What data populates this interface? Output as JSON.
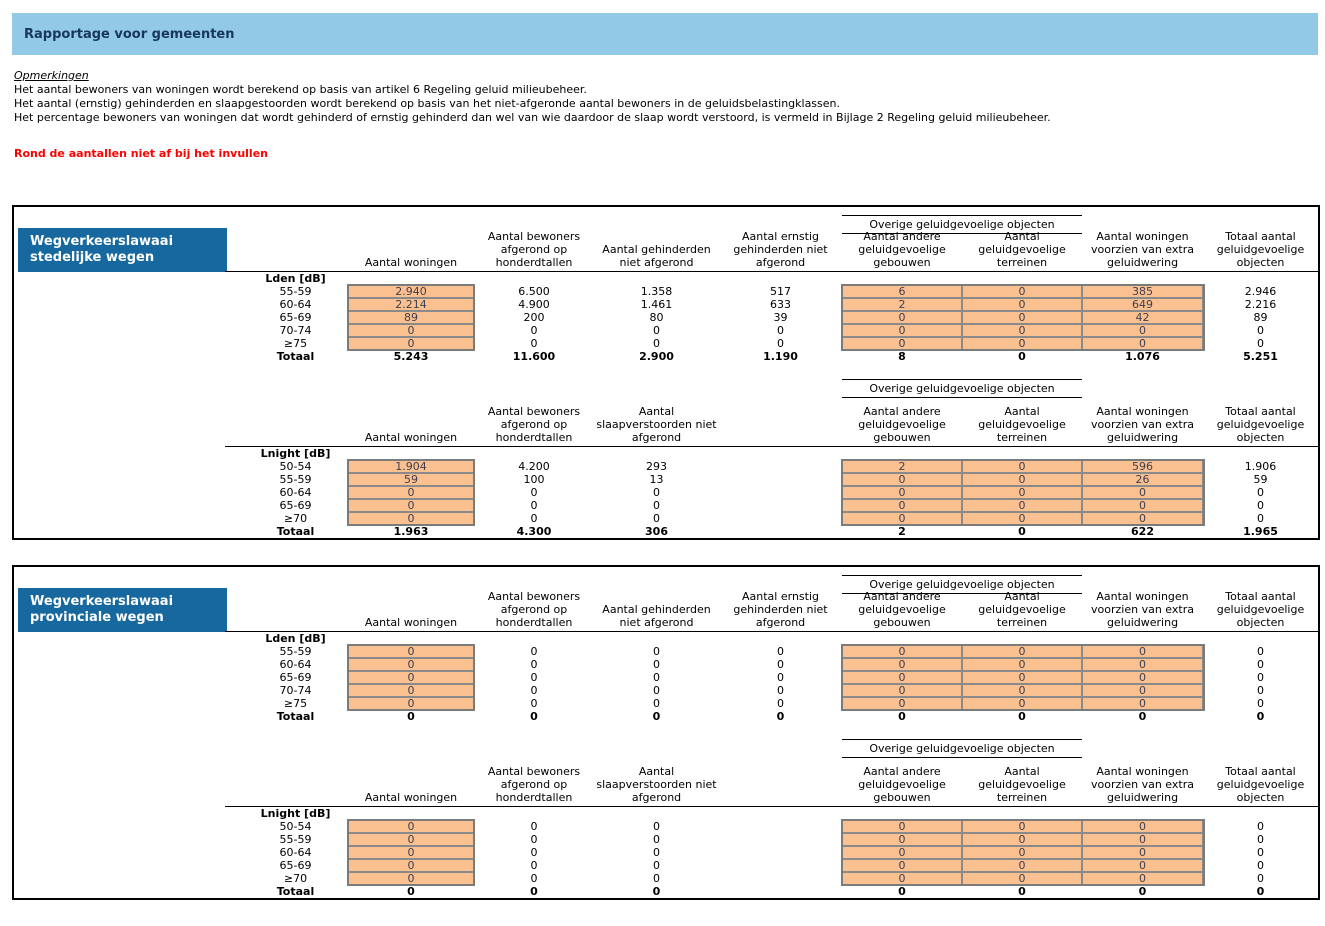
{
  "page": {
    "title": "Rapportage voor gemeenten",
    "notes_heading": "Opmerkingen",
    "notes": [
      "Het aantal bewoners van woningen wordt berekend op basis van artikel 6 Regeling geluid milieubeheer.",
      "Het aantal (ernstig) gehinderden en slaapgestoorden wordt berekend op basis van het niet-afgeronde aantal bewoners in de geluidsbelastingklassen.",
      "Het percentage bewoners van woningen dat wordt gehinderd of ernstig gehinderd dan wel van wie daardoor de slaap wordt verstoord, is vermeld in Bijlage 2 Regeling geluid milieubeheer."
    ],
    "warning": "Rond de aantallen niet af bij het invullen"
  },
  "colors": {
    "banner_bg": "#92C9E7",
    "table_title_bg": "#17689E",
    "input_cell_bg": "#FAC090",
    "warning_text": "#FF0000"
  },
  "labels": {
    "group_header": "Overige geluidgevoelige objecten"
  },
  "tables": [
    {
      "title": "Wegverkeerslawaai stedelijke wegen",
      "sections": [
        {
          "band_label": "Lden [dB]",
          "col_headers": [
            "Aantal woningen",
            "Aantal bewoners afgerond op honderdtallen",
            "Aantal gehinderden niet afgerond",
            "Aantal ernstig gehinderden niet afgerond",
            "Aantal andere geluidgevoelige gebouwen",
            "Aantal geluidgevoelige terreinen",
            "Aantal woningen voorzien van extra geluidwering",
            "Totaal aantal geluidgevoelige objecten"
          ],
          "rows": [
            {
              "label": "55-59",
              "values": [
                "2.940",
                "6.500",
                "1.358",
                "517",
                "6",
                "0",
                "385",
                "2.946"
              ]
            },
            {
              "label": "60-64",
              "values": [
                "2.214",
                "4.900",
                "1.461",
                "633",
                "2",
                "0",
                "649",
                "2.216"
              ]
            },
            {
              "label": "65-69",
              "values": [
                "89",
                "200",
                "80",
                "39",
                "0",
                "0",
                "42",
                "89"
              ]
            },
            {
              "label": "70-74",
              "values": [
                "0",
                "0",
                "0",
                "0",
                "0",
                "0",
                "0",
                "0"
              ]
            },
            {
              "label": "≥75",
              "values": [
                "0",
                "0",
                "0",
                "0",
                "0",
                "0",
                "0",
                "0"
              ]
            }
          ],
          "total": {
            "label": "Totaal",
            "values": [
              "5.243",
              "11.600",
              "2.900",
              "1.190",
              "8",
              "0",
              "1.076",
              "5.251"
            ]
          }
        },
        {
          "band_label": "Lnight [dB]",
          "col_headers": [
            "Aantal woningen",
            "Aantal bewoners afgerond op honderdtallen",
            "Aantal slaapverstoorden niet afgerond",
            "",
            "Aantal andere geluidgevoelige gebouwen",
            "Aantal geluidgevoelige terreinen",
            "Aantal woningen voorzien van extra geluidwering",
            "Totaal aantal geluidgevoelige objecten"
          ],
          "rows": [
            {
              "label": "50-54",
              "values": [
                "1.904",
                "4.200",
                "293",
                "",
                "2",
                "0",
                "596",
                "1.906"
              ]
            },
            {
              "label": "55-59",
              "values": [
                "59",
                "100",
                "13",
                "",
                "0",
                "0",
                "26",
                "59"
              ]
            },
            {
              "label": "60-64",
              "values": [
                "0",
                "0",
                "0",
                "",
                "0",
                "0",
                "0",
                "0"
              ]
            },
            {
              "label": "65-69",
              "values": [
                "0",
                "0",
                "0",
                "",
                "0",
                "0",
                "0",
                "0"
              ]
            },
            {
              "label": "≥70",
              "values": [
                "0",
                "0",
                "0",
                "",
                "0",
                "0",
                "0",
                "0"
              ]
            }
          ],
          "total": {
            "label": "Totaal",
            "values": [
              "1.963",
              "4.300",
              "306",
              "",
              "2",
              "0",
              "622",
              "1.965"
            ]
          }
        }
      ]
    },
    {
      "title": "Wegverkeerslawaai provinciale wegen",
      "sections": [
        {
          "band_label": "Lden [dB]",
          "col_headers": [
            "Aantal woningen",
            "Aantal bewoners afgerond op honderdtallen",
            "Aantal gehinderden niet afgerond",
            "Aantal ernstig gehinderden niet afgerond",
            "Aantal andere geluidgevoelige gebouwen",
            "Aantal geluidgevoelige terreinen",
            "Aantal woningen voorzien van extra geluidwering",
            "Totaal aantal geluidgevoelige objecten"
          ],
          "rows": [
            {
              "label": "55-59",
              "values": [
                "0",
                "0",
                "0",
                "0",
                "0",
                "0",
                "0",
                "0"
              ]
            },
            {
              "label": "60-64",
              "values": [
                "0",
                "0",
                "0",
                "0",
                "0",
                "0",
                "0",
                "0"
              ]
            },
            {
              "label": "65-69",
              "values": [
                "0",
                "0",
                "0",
                "0",
                "0",
                "0",
                "0",
                "0"
              ]
            },
            {
              "label": "70-74",
              "values": [
                "0",
                "0",
                "0",
                "0",
                "0",
                "0",
                "0",
                "0"
              ]
            },
            {
              "label": "≥75",
              "values": [
                "0",
                "0",
                "0",
                "0",
                "0",
                "0",
                "0",
                "0"
              ]
            }
          ],
          "total": {
            "label": "Totaal",
            "values": [
              "0",
              "0",
              "0",
              "0",
              "0",
              "0",
              "0",
              "0"
            ]
          }
        },
        {
          "band_label": "Lnight [dB]",
          "col_headers": [
            "Aantal woningen",
            "Aantal bewoners afgerond op honderdtallen",
            "Aantal slaapverstoorden niet afgerond",
            "",
            "Aantal andere geluidgevoelige gebouwen",
            "Aantal geluidgevoelige terreinen",
            "Aantal woningen voorzien van extra geluidwering",
            "Totaal aantal geluidgevoelige objecten"
          ],
          "rows": [
            {
              "label": "50-54",
              "values": [
                "0",
                "0",
                "0",
                "",
                "0",
                "0",
                "0",
                "0"
              ]
            },
            {
              "label": "55-59",
              "values": [
                "0",
                "0",
                "0",
                "",
                "0",
                "0",
                "0",
                "0"
              ]
            },
            {
              "label": "60-64",
              "values": [
                "0",
                "0",
                "0",
                "",
                "0",
                "0",
                "0",
                "0"
              ]
            },
            {
              "label": "65-69",
              "values": [
                "0",
                "0",
                "0",
                "",
                "0",
                "0",
                "0",
                "0"
              ]
            },
            {
              "label": "≥70",
              "values": [
                "0",
                "0",
                "0",
                "",
                "0",
                "0",
                "0",
                "0"
              ]
            }
          ],
          "total": {
            "label": "Totaal",
            "values": [
              "0",
              "0",
              "0",
              "",
              "0",
              "0",
              "0",
              "0"
            ]
          }
        }
      ]
    }
  ]
}
